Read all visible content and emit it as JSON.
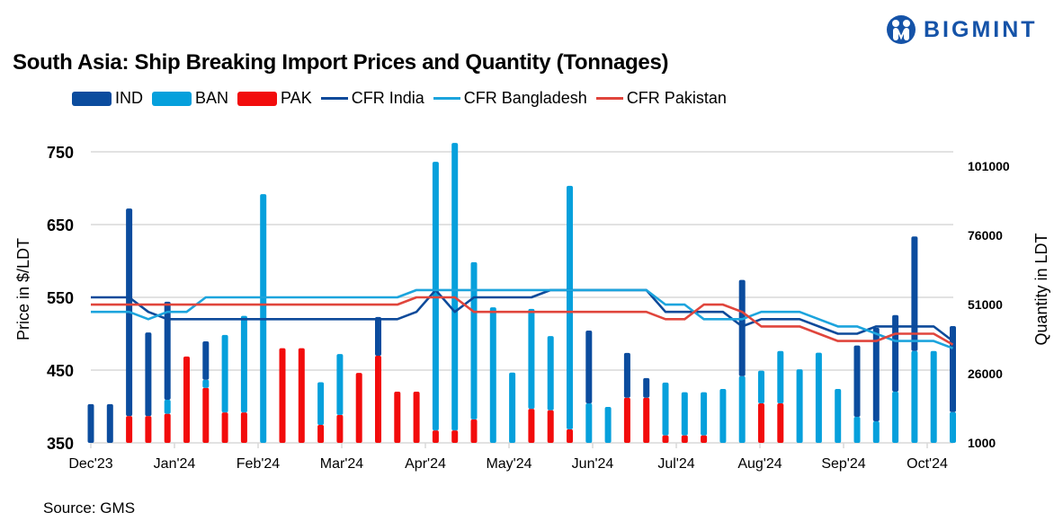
{
  "brand": {
    "name": "BIGMINT",
    "color": "#1553a8"
  },
  "chart_data": {
    "type": "bar+line",
    "title": "South Asia: Ship Breaking Import Prices and Quantity (Tonnages)",
    "source": "Source: GMS",
    "x_tick_labels": [
      "Dec'23",
      "Jan'24",
      "Feb'24",
      "Mar'24",
      "Apr'24",
      "May'24",
      "Jun'24",
      "Jul'24",
      "Aug'24",
      "Sep'24",
      "Oct'24"
    ],
    "y_left": {
      "label": "Price in $/LDT",
      "ticks": [
        350,
        450,
        550,
        650,
        750
      ],
      "range": [
        350,
        761
      ]
    },
    "y_right": {
      "label": "Quantity in LDT",
      "ticks": [
        1000,
        26000,
        51000,
        76000,
        101000
      ],
      "range": [
        1000,
        109000
      ]
    },
    "grid": true,
    "legend_position": "top",
    "bar_series": [
      {
        "name": "IND",
        "color": "#0b4c9e",
        "stack_order": 3,
        "values": [
          15000,
          15000,
          75000,
          30200,
          35400,
          0,
          13900,
          0,
          0,
          0,
          0,
          0,
          0,
          0,
          0,
          14000,
          0,
          0,
          0,
          0,
          0,
          0,
          0,
          0,
          0,
          0,
          26300,
          0,
          16200,
          7100,
          0,
          0,
          0,
          0,
          34800,
          0,
          0,
          0,
          0,
          0,
          25800,
          33800,
          27700,
          41400,
          0,
          31100
        ]
      },
      {
        "name": "BAN",
        "color": "#06a0dc",
        "stack_order": 2,
        "values": [
          0,
          0,
          0,
          0,
          5100,
          0,
          2900,
          28000,
          34900,
          90900,
          0,
          0,
          15400,
          22000,
          0,
          0,
          0,
          0,
          97100,
          103900,
          56800,
          50000,
          26400,
          36100,
          26800,
          88000,
          15300,
          14000,
          0,
          0,
          19100,
          15600,
          15600,
          20500,
          25100,
          11800,
          18900,
          27600,
          33600,
          20500,
          10400,
          8800,
          19500,
          34200,
          34200,
          12100
        ]
      },
      {
        "name": "PAK",
        "color": "#f20c0c",
        "stack_order": 1,
        "values": [
          0,
          0,
          10700,
          10700,
          11500,
          32200,
          20900,
          12000,
          12000,
          0,
          35200,
          35200,
          7500,
          11100,
          26300,
          32500,
          19500,
          19500,
          5500,
          5500,
          9500,
          0,
          0,
          13300,
          12800,
          5900,
          0,
          0,
          17300,
          17300,
          3700,
          3700,
          3700,
          0,
          0,
          15300,
          15300,
          0,
          0,
          0,
          0,
          0,
          0,
          0,
          0,
          0
        ]
      }
    ],
    "line_series": [
      {
        "name": "CFR India",
        "color": "#0d4a9a",
        "values": [
          550,
          550,
          550,
          530,
          520,
          520,
          520,
          520,
          520,
          520,
          520,
          520,
          520,
          520,
          520,
          520,
          520,
          530,
          560,
          530,
          550,
          550,
          550,
          550,
          560,
          560,
          560,
          560,
          560,
          560,
          530,
          530,
          530,
          530,
          510,
          520,
          520,
          520,
          510,
          500,
          500,
          510,
          510,
          510,
          510,
          490
        ]
      },
      {
        "name": "CFR Bangladesh",
        "color": "#1ca4dd",
        "values": [
          530,
          530,
          530,
          520,
          530,
          530,
          550,
          550,
          550,
          550,
          550,
          550,
          550,
          550,
          550,
          550,
          550,
          560,
          560,
          560,
          560,
          560,
          560,
          560,
          560,
          560,
          560,
          560,
          560,
          560,
          540,
          540,
          520,
          520,
          520,
          530,
          530,
          530,
          520,
          510,
          510,
          500,
          490,
          490,
          490,
          480
        ]
      },
      {
        "name": "CFR Pakistan",
        "color": "#e0453c",
        "values": [
          540,
          540,
          540,
          540,
          540,
          540,
          540,
          540,
          540,
          540,
          540,
          540,
          540,
          540,
          540,
          540,
          540,
          550,
          550,
          550,
          530,
          530,
          530,
          530,
          530,
          530,
          530,
          530,
          530,
          530,
          520,
          520,
          540,
          540,
          530,
          510,
          510,
          510,
          500,
          490,
          490,
          490,
          500,
          500,
          500,
          485
        ]
      }
    ]
  }
}
